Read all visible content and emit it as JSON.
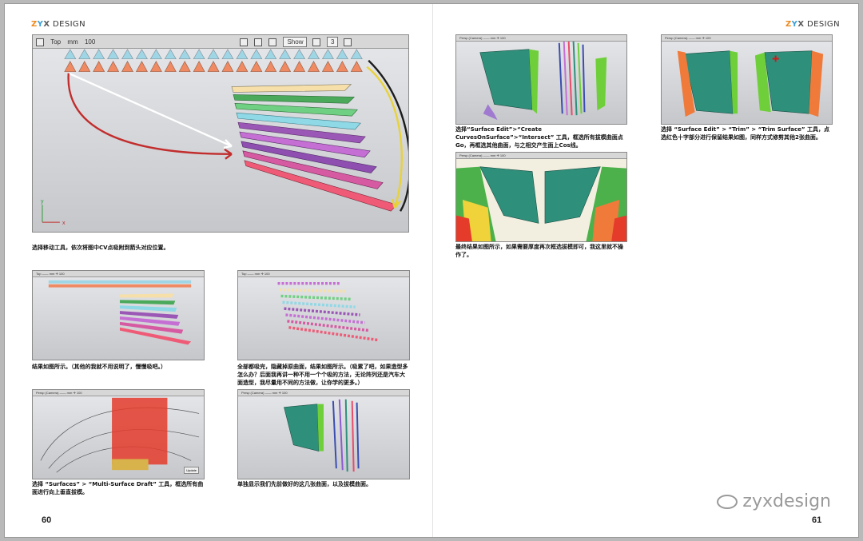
{
  "brand": {
    "z": "Z",
    "y": "Y",
    "x": "X",
    "rest": " DESIGN"
  },
  "page_left": "60",
  "page_right": "61",
  "watermark": {
    "text": "zyxdesign",
    "icon": "wechat-icon"
  },
  "main_viewport": {
    "view": "Top",
    "units": "mm",
    "zoom": "100",
    "show_button": "Show",
    "count": "3",
    "axis_y": "y",
    "axis_x": "x"
  },
  "small_viewport_toolbar": "Persp (Camera)  ——  mm   ✛  100",
  "small_viewport_toolbar_top": "Top  ——  mm   ✛  100",
  "small_show": "Show",
  "update_button": "Update",
  "captions": {
    "c1": "选择移动工具，依次将图中CV点吸附到箭头对应位置。",
    "c2": "结果如图所示。（其他的我就不用说明了，慢慢吸吧。）",
    "c3": "全部都吸完，隐藏掉原曲面，结果如图所示。（吸累了吧，如果造型多怎么办？后面我再讲一种不用一个个吸的方法，无论阵列还是汽车大面造型，我尽量用不同的方法做，让你学的更多。）",
    "c4": "选择 “Surfaces” > “Multi-Surface Draft” 工具，框选所有曲面进行向上垂直拔模。",
    "c5": "单独显示我们先前做好的这几张曲面，以及拔模曲面。",
    "c6": "选择“Surface Edit”>“Create CurvesOnSurface”>“Intersect” 工具，框选所有拔模曲面点Go，再框选其他曲面，与之相交产生面上Cos线。",
    "c7": "最终结果如图所示，如果需要厚度再次框选拔模即可，我这里就不操作了。",
    "c8": "选择 “Surface Edit” > “Trim” > “Trim Surface” 工具，点选红色十字部分进行保留结果如图，同样方式修剪其他2张曲面。"
  }
}
